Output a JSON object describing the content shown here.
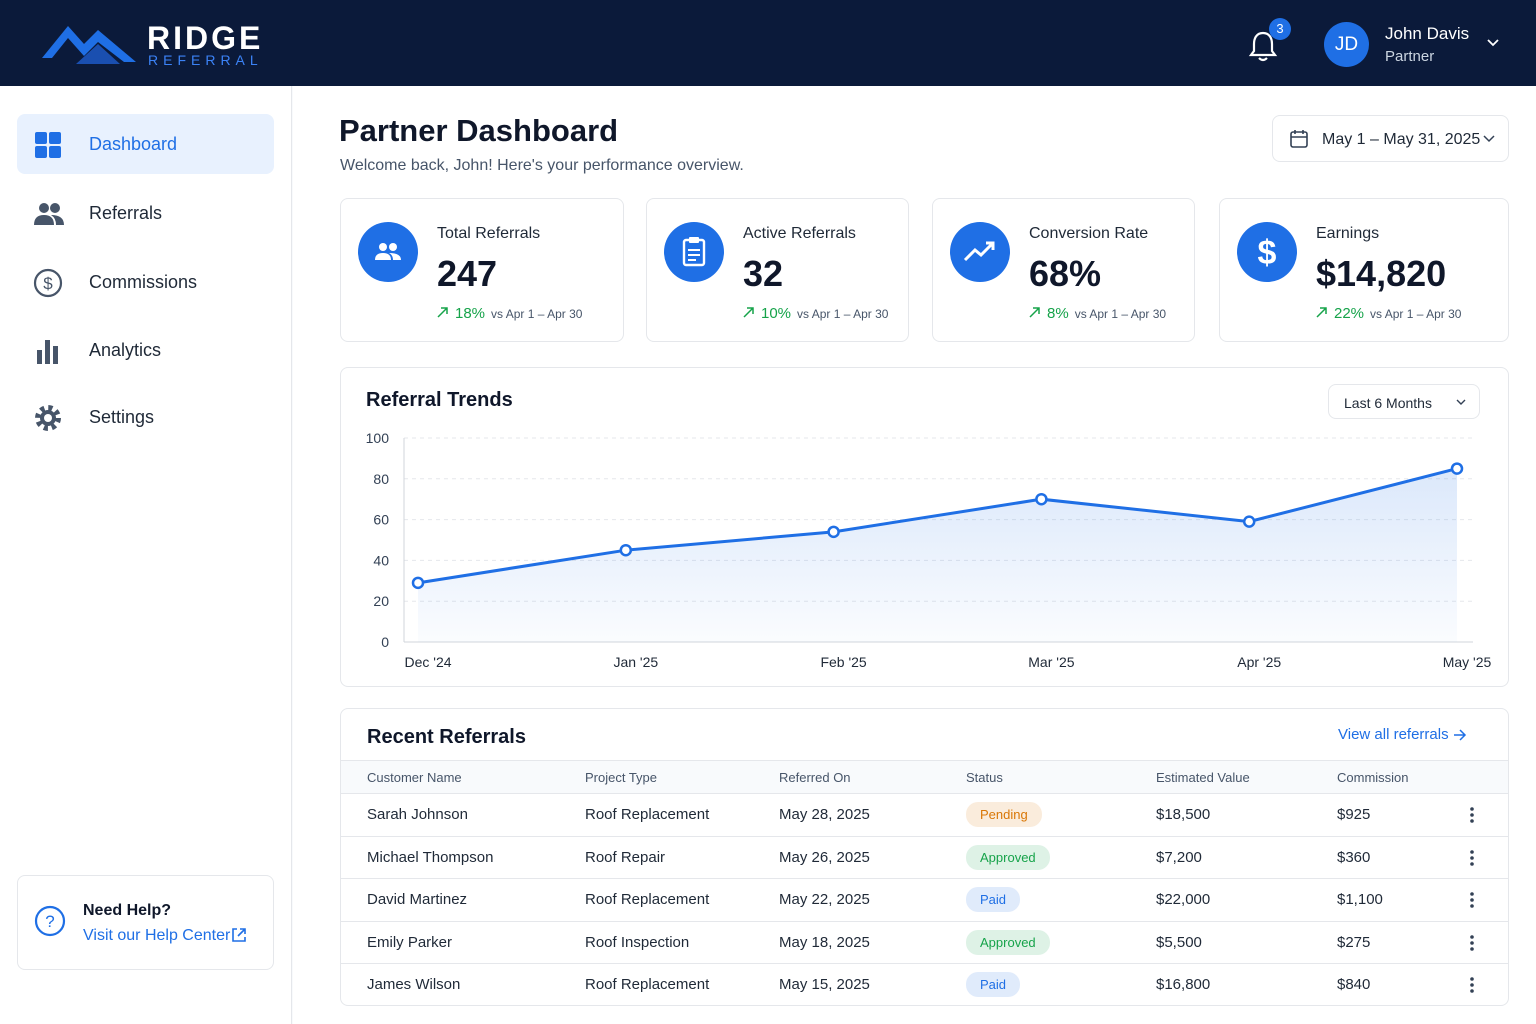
{
  "header": {
    "logo_title": "RIDGE",
    "logo_subtitle": "REFERRAL",
    "notification_count": "3",
    "user_initials": "JD",
    "user_name": "John Davis",
    "user_role": "Partner"
  },
  "sidebar": {
    "nav": [
      "Dashboard",
      "Referrals",
      "Commissions",
      "Analytics",
      "Settings"
    ],
    "help_title": "Need Help?",
    "help_link": "Visit our Help Center"
  },
  "page": {
    "title": "Partner Dashboard",
    "subtitle": "Welcome back, John! Here's your performance overview.",
    "date_range": "May 1 – May 31, 2025"
  },
  "kpis": [
    {
      "label": "Total Referrals",
      "value": "247",
      "change": "18%",
      "comparison": "vs Apr 1 – Apr 30"
    },
    {
      "label": "Active Referrals",
      "value": "32",
      "change": "10%",
      "comparison": "vs Apr 1 – Apr 30"
    },
    {
      "label": "Conversion Rate",
      "value": "68%",
      "change": "8%",
      "comparison": "vs Apr 1 – Apr 30"
    },
    {
      "label": "Earnings",
      "value": "$14,820",
      "change": "22%",
      "comparison": "vs Apr 1 – Apr 30"
    }
  ],
  "chart_data": {
    "type": "line",
    "title": "Referral Trends",
    "filter": "Last 6 Months",
    "categories": [
      "Dec '24",
      "Jan '25",
      "Feb '25",
      "Mar '25",
      "Apr '25",
      "May '25"
    ],
    "values": [
      29,
      45,
      54,
      70,
      59,
      85
    ],
    "color": "#1f6fe5",
    "ylim": [
      0,
      100
    ],
    "yticks": [
      0,
      20,
      40,
      60,
      80,
      100
    ],
    "grid": true
  },
  "table": {
    "title": "Recent Referrals",
    "link": "View all referrals",
    "columns": [
      "Customer Name",
      "Project Type",
      "Referred On",
      "Status",
      "Estimated Value",
      "Commission"
    ],
    "rows": [
      [
        "Sarah Johnson",
        "Roof Replacement",
        "May 28, 2025",
        "Pending",
        "$18,500",
        "$925"
      ],
      [
        "Michael Thompson",
        "Roof Repair",
        "May 26, 2025",
        "Approved",
        "$7,200",
        "$360"
      ],
      [
        "David Martinez",
        "Roof Replacement",
        "May 22, 2025",
        "Paid",
        "$22,000",
        "$1,100"
      ],
      [
        "Emily Parker",
        "Roof Inspection",
        "May 18, 2025",
        "Approved",
        "$5,500",
        "$275"
      ],
      [
        "James Wilson",
        "Roof Replacement",
        "May 15, 2025",
        "Paid",
        "$16,800",
        "$840"
      ]
    ],
    "status_colors": [
      "#d97706",
      "#16a34a",
      "#1f6fe5",
      "#16a34a",
      "#1f6fe5"
    ]
  }
}
